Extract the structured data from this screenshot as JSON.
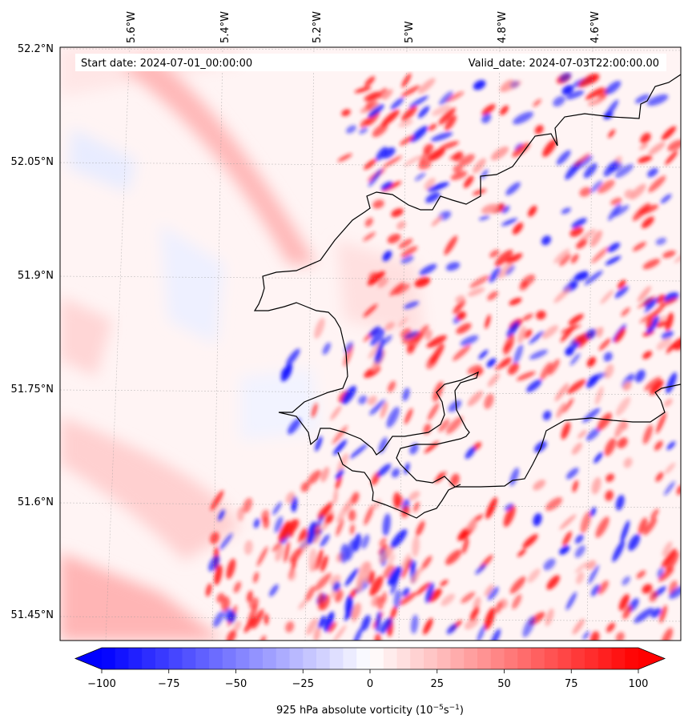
{
  "map": {
    "start_label": "Start date: 2024-07-01_00:00:00",
    "valid_label": "Valid_date: 2024-07-03T22:00:00.00",
    "lon_labels": [
      "5.6°W",
      "5.4°W",
      "5.2°W",
      "5°W",
      "4.8°W",
      "4.6°W"
    ],
    "lat_labels": [
      "52.2°N",
      "52.05°N",
      "51.9°N",
      "51.75°N",
      "51.6°N",
      "51.45°N"
    ],
    "field": "925 hPa absolute vorticity",
    "projection": "Lambert conformal",
    "gridlines": true
  },
  "colorbar": {
    "ticks": [
      "−100",
      "−75",
      "−50",
      "−25",
      "0",
      "25",
      "50",
      "75",
      "100"
    ],
    "label_main": "925 hPa absolute vorticity (10",
    "label_exp1": "−5",
    "label_mid": "s",
    "label_exp2": "−1",
    "label_end": ")",
    "min": -100,
    "max": 100,
    "extend": "both",
    "colormap": "bwr",
    "color_low": "#0000ff",
    "color_mid": "#ffffff",
    "color_high": "#ff0000"
  }
}
